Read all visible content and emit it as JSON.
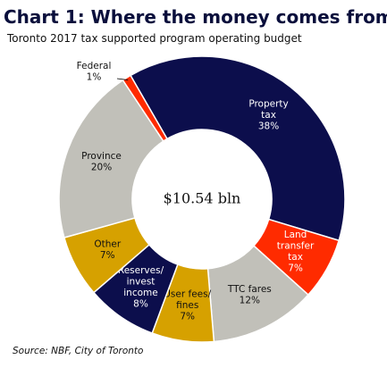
{
  "title": "Chart 1: Where the money comes from",
  "subtitle": "Toronto 2017 tax supported program operating budget",
  "source": "Source: NBF, City of Toronto",
  "chart_data": {
    "type": "donut",
    "total_label": "$10.54 bln",
    "categories": [
      "Property tax",
      "Land transfer tax",
      "TTC fares",
      "User fees/ fines",
      "Reserves/ invest income",
      "Other",
      "Province",
      "Federal"
    ],
    "values": [
      38,
      7,
      12,
      7,
      8,
      7,
      20,
      1
    ],
    "value_labels": [
      "38%",
      "7%",
      "12%",
      "7%",
      "8%",
      "7%",
      "20%",
      "1%"
    ],
    "colors": [
      "#0c0e4c",
      "#ff2b00",
      "#c1c0b9",
      "#d6a100",
      "#0c0e4c",
      "#d6a100",
      "#c1c0b9",
      "#ff2b00"
    ]
  }
}
